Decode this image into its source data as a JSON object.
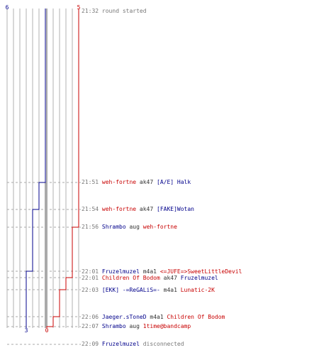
{
  "colors": {
    "red_team": "#c80000",
    "blue_team": "#00008b",
    "grid": "#b0b0b0",
    "dash": "#aaaaaa",
    "center": "#555555",
    "timestamp": "#777777"
  },
  "scores": {
    "blue_start": "6",
    "red_start": "5",
    "blue_end": "3",
    "red_end": "0"
  },
  "chart_data": {
    "type": "line",
    "x": [
      "21:32",
      "21:51",
      "21:54",
      "21:56",
      "22:01",
      "22:01",
      "22:03",
      "22:06",
      "22:07"
    ],
    "series": [
      {
        "values": [
          6,
          5,
          4,
          4,
          3,
          3,
          3,
          3,
          3
        ]
      },
      {
        "values": [
          5,
          5,
          5,
          4,
          4,
          3,
          2,
          1,
          0
        ]
      }
    ],
    "ylim": [
      0,
      6
    ]
  },
  "events": [
    {
      "time": "21:32",
      "text": "round started",
      "killer": "",
      "weapon": "",
      "victim": ""
    },
    {
      "time": "21:51",
      "killer": "weh-fortne",
      "weapon": "ak47",
      "victim": "[A/E] Halk"
    },
    {
      "time": "21:54",
      "killer": "weh-fortne",
      "weapon": "ak47",
      "victim": "[FAKE]Wotan"
    },
    {
      "time": "21:56",
      "killer": "Shrambo",
      "weapon": "aug",
      "victim": "weh-fortne"
    },
    {
      "time": "22:01",
      "killer": "Fruzelmuzel",
      "weapon": "m4a1",
      "victim": "<=JUFE=>SweetLittleDevil"
    },
    {
      "time": "22:01",
      "killer": "Children Of Bodom",
      "weapon": "ak47",
      "victim": "Fruzelmuzel"
    },
    {
      "time": "22:03",
      "killer": "[EKK] -=ReGALiS=-",
      "weapon": "m4a1",
      "victim": "Lunatic-2K"
    },
    {
      "time": "22:06",
      "killer": "Jaeger.sToneD",
      "weapon": "m4a1",
      "victim": "Children Of Bodom"
    },
    {
      "time": "22:07",
      "killer": "Shrambo",
      "weapon": "aug",
      "victim": "1time@bandcamp"
    },
    {
      "time": "22:09",
      "player": "Fruzelmuzel",
      "text": "disconnected"
    }
  ]
}
